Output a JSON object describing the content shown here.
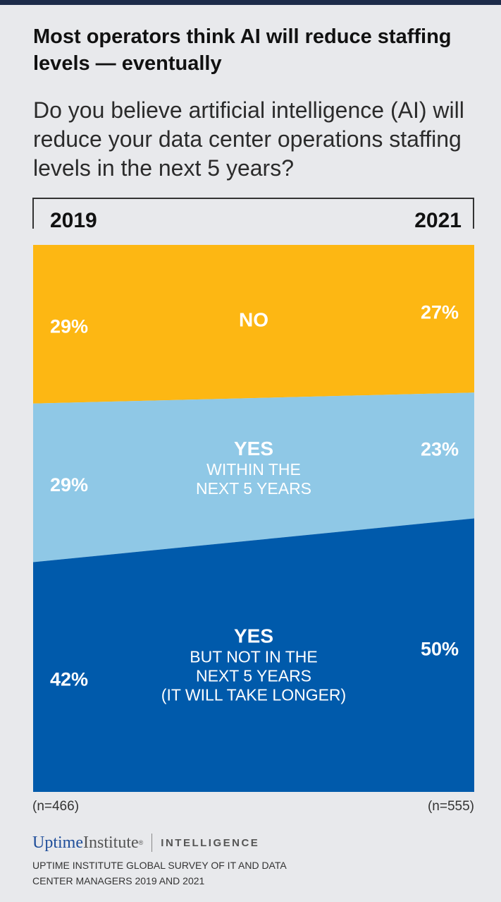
{
  "header": {
    "title": "Most operators think AI will reduce staffing levels — eventually",
    "subtitle": "Do you believe artificial intelligence (AI) will reduce your data center operations staffing levels in the next 5 years?"
  },
  "chart_data": {
    "type": "area",
    "title": "Most operators think AI will reduce staffing levels — eventually",
    "subtitle": "Do you believe artificial intelligence (AI) will reduce your data center operations staffing levels in the next 5 years?",
    "x": [
      "2019",
      "2021"
    ],
    "stacking": "percent",
    "series": [
      {
        "name": "NO",
        "label_main": "NO",
        "label_sub": [],
        "values": [
          29,
          27
        ],
        "value_labels": [
          "29%",
          "27%"
        ],
        "color": "#fdb713"
      },
      {
        "name": "YES WITHIN THE NEXT 5 YEARS",
        "label_main": "YES",
        "label_sub": [
          "WITHIN THE",
          "NEXT 5 YEARS"
        ],
        "values": [
          29,
          23
        ],
        "value_labels": [
          "29%",
          "23%"
        ],
        "color": "#8fc8e6"
      },
      {
        "name": "YES BUT NOT IN THE NEXT 5 YEARS (IT WILL TAKE LONGER)",
        "label_main": "YES",
        "label_sub": [
          "BUT NOT IN THE",
          "NEXT 5 YEARS",
          "(IT WILL TAKE LONGER)"
        ],
        "values": [
          42,
          50
        ],
        "value_labels": [
          "42%",
          "50%"
        ],
        "color": "#005aab"
      }
    ],
    "sample_sizes": [
      "(n=466)",
      "(n=555)"
    ],
    "legend": "none",
    "grid": false
  },
  "footer": {
    "logo_uptime": "Uptime",
    "logo_institute": "Institute",
    "logo_reg": "®",
    "logo_intelligence": "INTELLIGENCE",
    "source": "UPTIME INSTITUTE GLOBAL SURVEY OF IT AND DATA CENTER MANAGERS 2019 AND 2021"
  }
}
